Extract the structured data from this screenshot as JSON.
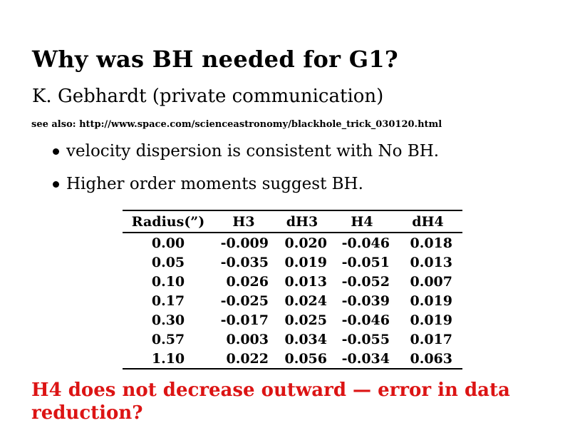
{
  "slide": {
    "title": "Why was BH needed for G1?",
    "subtitle": "K. Gebhardt (private communication)",
    "see_also": "see also: http://www.space.com/scienceastronomy/blackhole_trick_030120.html",
    "bullets": [
      "velocity dispersion is consistent with No BH.",
      "Higher order moments suggest BH."
    ],
    "note": {
      "line1": "H4 does not decrease outward — error in data",
      "line2": "reduction?"
    },
    "colors": {
      "background": "#ffffff",
      "text": "#000000",
      "note_red": "#dc1414"
    }
  },
  "table": {
    "columns": [
      "Radius(”)",
      "H3",
      "dH3",
      "H4",
      "dH4"
    ],
    "rows": [
      [
        "0.00",
        "-0.009",
        "0.020",
        "-0.046",
        "0.018"
      ],
      [
        "0.05",
        "-0.035",
        "0.019",
        "-0.051",
        "0.013"
      ],
      [
        "0.10",
        "0.026",
        "0.013",
        "-0.052",
        "0.007"
      ],
      [
        "0.17",
        "-0.025",
        "0.024",
        "-0.039",
        "0.019"
      ],
      [
        "0.30",
        "-0.017",
        "0.025",
        "-0.046",
        "0.019"
      ],
      [
        "0.57",
        "0.003",
        "0.034",
        "-0.055",
        "0.017"
      ],
      [
        "1.10",
        "0.022",
        "0.056",
        "-0.034",
        "0.063"
      ]
    ]
  }
}
